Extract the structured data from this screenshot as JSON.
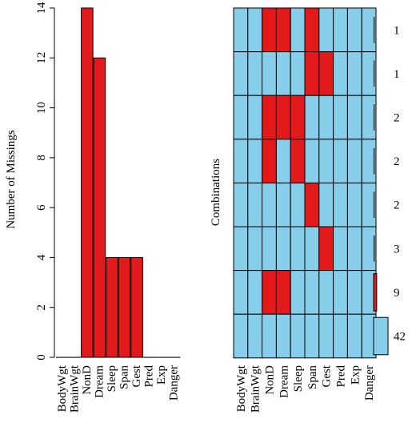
{
  "chart_data": [
    {
      "type": "bar",
      "ylabel": "Number of Missings",
      "xlabel": "",
      "ylim": [
        0,
        14
      ],
      "yticks": [
        0,
        2,
        4,
        6,
        8,
        10,
        12,
        14
      ],
      "categories": [
        "BodyWgt",
        "BrainWgt",
        "NonD",
        "Dream",
        "Sleep",
        "Span",
        "Gest",
        "Pred",
        "Exp",
        "Danger"
      ],
      "values": [
        0,
        0,
        14,
        12,
        4,
        4,
        4,
        0,
        0,
        0
      ],
      "grid": false,
      "legend": "none"
    },
    {
      "type": "heatmap",
      "ylabel": "Combinations",
      "columns": [
        "BodyWgt",
        "BrainWgt",
        "NonD",
        "Dream",
        "Sleep",
        "Span",
        "Gest",
        "Pred",
        "Exp",
        "Danger"
      ],
      "rows": [
        {
          "missing": [
            "NonD",
            "Dream",
            "Span"
          ],
          "count": 1
        },
        {
          "missing": [
            "Span",
            "Gest"
          ],
          "count": 1
        },
        {
          "missing": [
            "NonD",
            "Dream",
            "Sleep"
          ],
          "count": 2
        },
        {
          "missing": [
            "NonD",
            "Sleep"
          ],
          "count": 2
        },
        {
          "missing": [
            "Span"
          ],
          "count": 2
        },
        {
          "missing": [
            "Gest"
          ],
          "count": 3
        },
        {
          "missing": [
            "NonD",
            "Dream"
          ],
          "count": 9
        },
        {
          "missing": [],
          "count": 42
        }
      ],
      "legend": "none"
    }
  ],
  "colors": {
    "missing": "#e31a1c",
    "observed": "#87ceeb",
    "border": "#000000",
    "count_bar_small": "#000000",
    "count_bar_mid": "#e31a1c",
    "count_bar_large": "#87ceeb"
  }
}
